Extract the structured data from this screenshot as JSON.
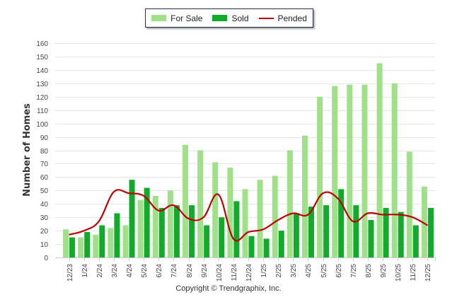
{
  "chart_data": {
    "type": "bar",
    "title": "",
    "xlabel": "",
    "ylabel": "Number of Homes",
    "ylim": [
      0,
      160
    ],
    "yticks": [
      0,
      10,
      20,
      30,
      40,
      50,
      60,
      70,
      80,
      90,
      100,
      110,
      120,
      130,
      140,
      150,
      160
    ],
    "grid": true,
    "legend_position": "top-center",
    "categories": [
      "12/23",
      "1/24",
      "2/24",
      "3/24",
      "4/24",
      "5/24",
      "6/24",
      "7/24",
      "8/24",
      "9/24",
      "10/24",
      "11/24",
      "12/24",
      "1/25",
      "2/25",
      "3/25",
      "4/25",
      "5/25",
      "6/25",
      "7/25",
      "8/25",
      "9/25",
      "10/25",
      "11/25",
      "12/25"
    ],
    "series": [
      {
        "name": "For Sale",
        "type": "bar",
        "color": "#a0e08a",
        "values": [
          21,
          15,
          17,
          22,
          24,
          43,
          46,
          50,
          84,
          80,
          71,
          67,
          51,
          58,
          61,
          80,
          91,
          120,
          128,
          129,
          129,
          145,
          130,
          79,
          53
        ]
      },
      {
        "name": "Sold",
        "type": "bar",
        "color": "#11aa2a",
        "values": [
          15,
          19,
          24,
          33,
          58,
          52,
          37,
          39,
          39,
          24,
          30,
          42,
          16,
          14,
          20,
          33,
          38,
          39,
          51,
          39,
          28,
          37,
          34,
          24,
          37
        ]
      },
      {
        "name": "Pended",
        "type": "line",
        "color": "#c00000",
        "values": [
          17,
          20,
          27,
          49,
          48,
          46,
          35,
          39,
          29,
          30,
          47,
          14,
          19,
          21,
          28,
          33,
          32,
          48,
          44,
          27,
          33,
          32,
          32,
          30,
          24
        ]
      }
    ]
  },
  "legend": {
    "items": [
      {
        "label": "For Sale",
        "color": "#a0e08a"
      },
      {
        "label": "Sold",
        "color": "#11aa2a"
      },
      {
        "label": "Pended",
        "color": "#c00000"
      }
    ]
  },
  "footer": {
    "copyright": "Copyright © Trendgraphix, Inc."
  }
}
